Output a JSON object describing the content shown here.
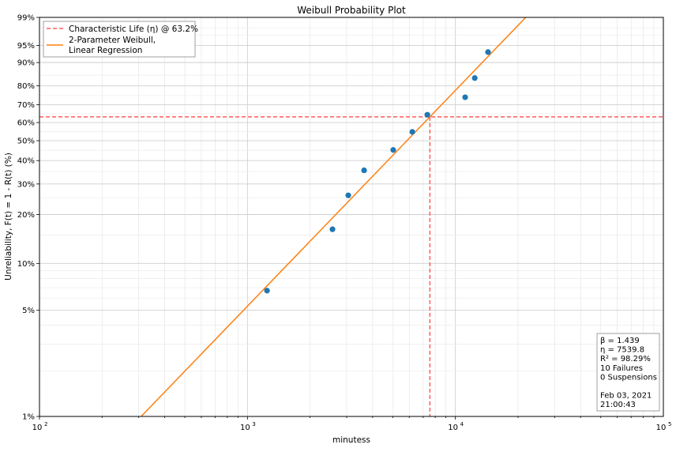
{
  "chart_data": {
    "type": "scatter",
    "title": "Weibull Probability Plot",
    "xlabel": "minutess",
    "ylabel": "Unreliability, F(t) = 1 - R(t) (%)",
    "x_scale": "log",
    "y_scale": "weibull",
    "xlim": [
      100,
      100000
    ],
    "ylim_percent": [
      1,
      99
    ],
    "x_ticks": [
      {
        "value": 100,
        "base": "10",
        "exp": "2"
      },
      {
        "value": 1000,
        "base": "10",
        "exp": "3"
      },
      {
        "value": 10000,
        "base": "10",
        "exp": "4"
      },
      {
        "value": 100000,
        "base": "10",
        "exp": "5"
      }
    ],
    "y_ticks": [
      {
        "value": 1,
        "label": "1%"
      },
      {
        "value": 5,
        "label": "5%"
      },
      {
        "value": 10,
        "label": "10%"
      },
      {
        "value": 20,
        "label": "20%"
      },
      {
        "value": 30,
        "label": "30%"
      },
      {
        "value": 40,
        "label": "40%"
      },
      {
        "value": 50,
        "label": "50%"
      },
      {
        "value": 60,
        "label": "60%"
      },
      {
        "value": 70,
        "label": "70%"
      },
      {
        "value": 80,
        "label": "80%"
      },
      {
        "value": 90,
        "label": "90%"
      },
      {
        "value": 95,
        "label": "95%"
      },
      {
        "value": 99,
        "label": "99%"
      }
    ],
    "grid": true,
    "legend_placement": "top-left",
    "legend": [
      {
        "label": "Characteristic Life (η) @ 63.2%",
        "style": "dashed",
        "color": "#ff5a5a"
      },
      {
        "label": "2-Parameter Weibull,",
        "label2": "Linear Regression",
        "style": "solid",
        "color": "#ff7f0e"
      }
    ],
    "points": {
      "color": "#1f77b4",
      "x": [
        1242,
        2564,
        3054,
        3639,
        5023,
        6206,
        7328,
        11140,
        12390,
        14350
      ],
      "y_percent": [
        6.7,
        16.3,
        25.9,
        35.6,
        45.2,
        54.8,
        64.4,
        74.1,
        83.7,
        93.3
      ]
    },
    "fit": {
      "beta": 1.439,
      "eta": 7539.8,
      "color": "#ff7f0e"
    },
    "characteristic_life": {
      "eta": 7539.8,
      "percent": 63.2,
      "color": "#ff5a5a"
    },
    "annotation": [
      "β = 1.439",
      "η = 7539.8",
      "R² = 98.29%",
      "10 Failures",
      "0 Suspensions",
      "",
      "Feb 03, 2021",
      "21:00:43"
    ]
  }
}
